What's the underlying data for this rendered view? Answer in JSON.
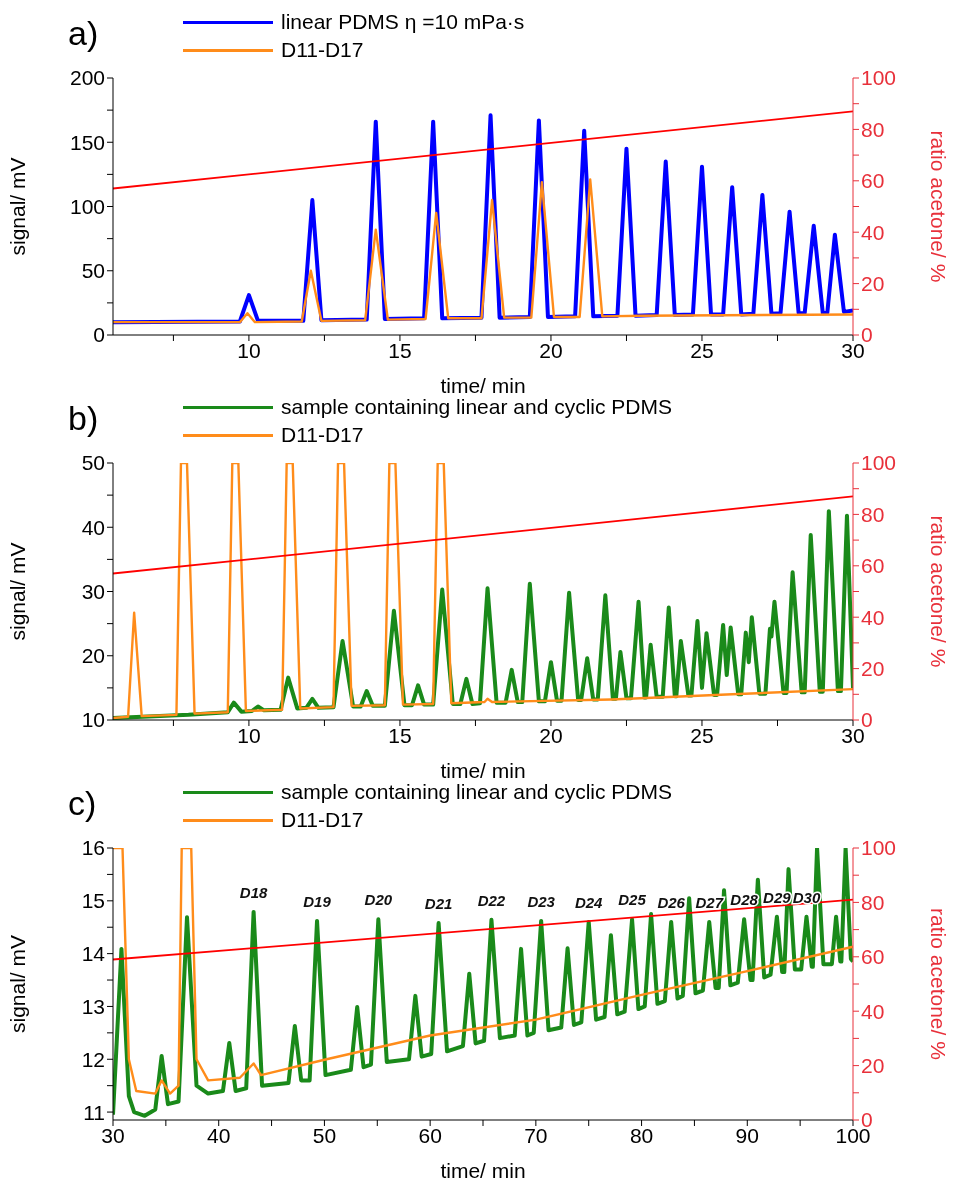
{
  "chart_data": [
    {
      "type": "line",
      "title": "a)",
      "xlabel": "time/ min",
      "ylabel": "signal/ mV",
      "y2label": "ratio acetone/ %",
      "legend": "top left",
      "xlim": [
        5.5,
        30
      ],
      "xticks": [
        {
          "value": 7.5,
          "label": null
        },
        10,
        {
          "value": 12.5,
          "label": null
        },
        15,
        {
          "value": 17.5,
          "label": null
        },
        20,
        {
          "value": 22.5,
          "label": null
        },
        25,
        {
          "value": 27.5,
          "label": null
        },
        30
      ],
      "ylim": [
        0,
        200
      ],
      "yticks": [
        0,
        {
          "value": 25,
          "label": null
        },
        50,
        {
          "value": 75,
          "label": null
        },
        100,
        {
          "value": 125,
          "label": null
        },
        150,
        {
          "value": 175,
          "label": null
        },
        200
      ],
      "y2lim": [
        0,
        100
      ],
      "y2ticks": [
        0,
        {
          "value": 10,
          "label": null
        },
        20,
        {
          "value": 30,
          "label": null
        },
        40,
        {
          "value": 50,
          "label": null
        },
        60,
        {
          "value": 70,
          "label": null
        },
        80,
        {
          "value": 90,
          "label": null
        },
        100
      ],
      "series": [
        {
          "name": "linear PDMS η =10 mPa·s",
          "color": "#0000ff",
          "x": [
            5.5,
            9.7,
            10.0,
            10.3,
            11.8,
            12.1,
            12.4,
            13.9,
            14.2,
            14.5,
            15.8,
            16.1,
            16.4,
            17.7,
            18.0,
            18.3,
            19.3,
            19.6,
            19.9,
            20.8,
            21.1,
            21.4,
            22.2,
            22.5,
            22.8,
            23.5,
            23.8,
            24.1,
            24.7,
            25.0,
            25.3,
            25.7,
            26.0,
            26.3,
            26.7,
            27.0,
            27.3,
            27.6,
            27.9,
            28.2,
            28.4,
            28.7,
            29.0,
            29.15,
            29.4,
            29.7,
            30
          ],
          "values": [
            10,
            10.5,
            31,
            11,
            11,
            105,
            11.5,
            12,
            166,
            12.5,
            13,
            166,
            13,
            13.5,
            171,
            13.5,
            14,
            167,
            14,
            14.5,
            159,
            14.5,
            15,
            145,
            15,
            15.5,
            135,
            15.5,
            16,
            131,
            16,
            16,
            115,
            16,
            16.5,
            109,
            16.5,
            17,
            96,
            17,
            17,
            85,
            17,
            17.5,
            78,
            18,
            19
          ]
        },
        {
          "name": "D11-D17",
          "color": "#ff8c1a",
          "x": [
            5.5,
            9.7,
            9.95,
            10.2,
            11.75,
            12.05,
            12.4,
            13.85,
            14.2,
            14.6,
            15.85,
            16.2,
            16.6,
            17.7,
            18.05,
            18.45,
            19.35,
            19.7,
            20.1,
            20.95,
            21.3,
            21.7,
            23,
            30
          ],
          "values": [
            10,
            10,
            17,
            10,
            10.5,
            50,
            11,
            11.5,
            82,
            12,
            12.5,
            95,
            13,
            13,
            105,
            13.5,
            13.5,
            119,
            14,
            14,
            121,
            14.5,
            15,
            16
          ]
        },
        {
          "color": "#ff0000",
          "axis": "y2",
          "x": [
            5.5,
            30
          ],
          "values": [
            57,
            87
          ]
        }
      ]
    },
    {
      "type": "line",
      "title": "b)",
      "xlabel": "time/ min",
      "ylabel": "signal/ mV",
      "y2label": "ratio acetone/ %",
      "legend": "top left",
      "xlim": [
        5.5,
        30
      ],
      "xticks": [
        {
          "value": 7.5,
          "label": null
        },
        10,
        {
          "value": 12.5,
          "label": null
        },
        15,
        {
          "value": 17.5,
          "label": null
        },
        20,
        {
          "value": 22.5,
          "label": null
        },
        25,
        {
          "value": 27.5,
          "label": null
        },
        30
      ],
      "ylim": [
        10,
        50
      ],
      "yticks": [
        10,
        {
          "value": 15,
          "label": null
        },
        20,
        {
          "value": 25,
          "label": null
        },
        30,
        {
          "value": 35,
          "label": null
        },
        40,
        {
          "value": 45,
          "label": null
        },
        50
      ],
      "y2lim": [
        0,
        100
      ],
      "y2ticks": [
        0,
        {
          "value": 10,
          "label": null
        },
        20,
        {
          "value": 30,
          "label": null
        },
        40,
        {
          "value": 50,
          "label": null
        },
        60,
        {
          "value": 70,
          "label": null
        },
        80,
        {
          "value": 90,
          "label": null
        },
        100
      ],
      "series": [
        {
          "name": "sample containing linear and cyclic PDMS",
          "color": "#1a8a1a",
          "x": [
            5.5,
            8,
            9.3,
            9.5,
            9.75,
            10.1,
            10.3,
            10.5,
            11.05,
            11.3,
            11.6,
            11.9,
            12.1,
            12.3,
            12.8,
            13.1,
            13.45,
            13.7,
            13.9,
            14.1,
            14.5,
            14.8,
            15.15,
            15.4,
            15.6,
            15.8,
            16.1,
            16.4,
            16.75,
            17.0,
            17.2,
            17.4,
            17.65,
            17.9,
            18.2,
            18.5,
            18.7,
            18.9,
            19.05,
            19.3,
            19.6,
            19.8,
            20.0,
            20.2,
            20.35,
            20.6,
            20.9,
            21.0,
            21.2,
            21.4,
            21.55,
            21.8,
            22.05,
            22.15,
            22.3,
            22.5,
            22.65,
            22.9,
            23.1,
            23.15,
            23.3,
            23.5,
            23.7,
            23.9,
            24.1,
            24.15,
            24.3,
            24.55,
            24.65,
            24.85,
            25.0,
            25.15,
            25.4,
            25.5,
            25.7,
            25.82,
            25.95,
            26.2,
            26.3,
            26.45,
            26.55,
            26.65,
            26.9,
            27.1,
            27.25,
            27.3,
            27.4,
            27.7,
            27.8,
            28.0,
            28.3,
            28.4,
            28.6,
            28.9,
            29.0,
            29.2,
            29.5,
            29.6,
            29.8,
            30
          ],
          "values": [
            10.3,
            10.8,
            11.2,
            12.7,
            11.3,
            11.4,
            12.1,
            11.5,
            11.6,
            16.6,
            11.8,
            11.9,
            13.3,
            11.9,
            12,
            22.3,
            12.1,
            12.1,
            14.5,
            12.2,
            12.2,
            27,
            12.3,
            12.3,
            15.4,
            12.4,
            12.4,
            30.3,
            12.5,
            12.5,
            16.4,
            12.5,
            12.6,
            30.5,
            12.7,
            12.7,
            17.8,
            12.8,
            12.8,
            31.2,
            12.9,
            12.9,
            19,
            13,
            13,
            29.8,
            13.1,
            13.1,
            19.6,
            13.2,
            13.2,
            29.4,
            13.3,
            13.3,
            20.6,
            13.4,
            13.4,
            28.4,
            13.5,
            13.5,
            21.7,
            13.6,
            13.6,
            27.5,
            13.7,
            13.7,
            22.3,
            13.8,
            13.8,
            25.4,
            15,
            23.5,
            13.9,
            13.9,
            24.8,
            17,
            24.4,
            14,
            14,
            23.6,
            19,
            26,
            14.1,
            14.1,
            24.2,
            23,
            28.4,
            14.2,
            14.2,
            33,
            14.3,
            14.3,
            38.8,
            14.4,
            14.4,
            42.5,
            14.5,
            14.5,
            41.8,
            15
          ]
        },
        {
          "name": "D11-D17",
          "color": "#ff8c1a",
          "x": [
            5.5,
            6.0,
            6.2,
            6.45,
            7.6,
            7.75,
            7.95,
            8.2,
            9.3,
            9.45,
            9.65,
            9.9,
            11.1,
            11.25,
            11.45,
            11.7,
            12.8,
            12.95,
            13.15,
            13.4,
            14.5,
            14.65,
            14.85,
            15.1,
            16.1,
            16.25,
            16.45,
            16.7,
            17.8,
            17.9,
            18.05,
            22,
            26,
            30
          ],
          "values": [
            10.3,
            10.5,
            26.7,
            10.6,
            10.8,
            50,
            50,
            11,
            11.2,
            50,
            50,
            11.4,
            11.6,
            50,
            50,
            11.8,
            12,
            50,
            50,
            12.2,
            12.3,
            50,
            50,
            12.4,
            12.5,
            50,
            50,
            12.6,
            12.8,
            13.3,
            12.8,
            13.2,
            14,
            14.8
          ]
        },
        {
          "color": "#ff0000",
          "axis": "y2",
          "x": [
            5.5,
            30
          ],
          "values": [
            57,
            87
          ]
        }
      ]
    },
    {
      "type": "line",
      "title": "c)",
      "xlabel": "time/ min",
      "ylabel": "signal/ mV",
      "y2label": "ratio acetone/ %",
      "legend": "top left",
      "xlim": [
        30,
        100
      ],
      "xticks": [
        30,
        {
          "value": 35,
          "label": null
        },
        40,
        {
          "value": 45,
          "label": null
        },
        50,
        {
          "value": 55,
          "label": null
        },
        60,
        {
          "value": 65,
          "label": null
        },
        70,
        {
          "value": 75,
          "label": null
        },
        80,
        {
          "value": 85,
          "label": null
        },
        90,
        {
          "value": 95,
          "label": null
        },
        100
      ],
      "ylim": [
        10.85,
        16
      ],
      "yticks": [
        11,
        {
          "value": 11.5,
          "label": null
        },
        12,
        {
          "value": 12.5,
          "label": null
        },
        13,
        {
          "value": 13.5,
          "label": null
        },
        14,
        {
          "value": 14.5,
          "label": null
        },
        15,
        {
          "value": 15.5,
          "label": null
        },
        16
      ],
      "y2lim": [
        0,
        100
      ],
      "y2ticks": [
        0,
        {
          "value": 10,
          "label": null
        },
        20,
        {
          "value": 30,
          "label": null
        },
        40,
        {
          "value": 50,
          "label": null
        },
        60,
        {
          "value": 70,
          "label": null
        },
        80,
        {
          "value": 90,
          "label": null
        },
        100
      ],
      "annotations": [
        {
          "text": "D18",
          "x": 43.3,
          "y": 14.79
        },
        {
          "text": "D19",
          "x": 49.3,
          "y": 14.62
        },
        {
          "text": "D20",
          "x": 55.1,
          "y": 14.65
        },
        {
          "text": "D21",
          "x": 60.8,
          "y": 14.58
        },
        {
          "text": "D22",
          "x": 65.8,
          "y": 14.64
        },
        {
          "text": "D23",
          "x": 70.5,
          "y": 14.62
        },
        {
          "text": "D24",
          "x": 75.0,
          "y": 14.6
        },
        {
          "text": "D25",
          "x": 79.1,
          "y": 14.65
        },
        {
          "text": "D26",
          "x": 82.8,
          "y": 14.6
        },
        {
          "text": "D27",
          "x": 86.4,
          "y": 14.6
        },
        {
          "text": "D28",
          "x": 89.7,
          "y": 14.65
        },
        {
          "text": "D29",
          "x": 92.8,
          "y": 14.7
        },
        {
          "text": "D30",
          "x": 95.6,
          "y": 14.7
        }
      ],
      "series": [
        {
          "name": "sample containing linear and cyclic PDMS",
          "color": "#1a8a1a",
          "x": [
            30,
            30.8,
            31.5,
            32,
            33,
            34,
            34.6,
            35.2,
            36.2,
            37.0,
            37.9,
            39,
            40.4,
            41,
            41.6,
            42.6,
            43.3,
            44.1,
            46.6,
            47.2,
            47.8,
            48.6,
            49.3,
            50.1,
            52.5,
            53.1,
            53.7,
            54.4,
            55.1,
            55.9,
            58,
            58.6,
            59.2,
            60.1,
            60.8,
            61.6,
            63.1,
            63.7,
            64.3,
            65.1,
            65.8,
            66.6,
            68,
            68.6,
            69.2,
            69.8,
            70.5,
            71.2,
            72.4,
            73.0,
            73.6,
            74.3,
            75.0,
            75.7,
            76.5,
            77.1,
            77.7,
            78.4,
            79.1,
            79.7,
            80.3,
            80.9,
            81.5,
            82.2,
            82.8,
            83.4,
            83.9,
            84.5,
            85.1,
            85.8,
            86.4,
            87.0,
            87.3,
            87.8,
            88.4,
            89.1,
            89.7,
            90.3,
            90.5,
            91.0,
            91.6,
            92.2,
            92.8,
            93.3,
            93.5,
            93.9,
            94.5,
            95.1,
            95.6,
            96.1,
            96.2,
            96.6,
            97.2,
            98.0,
            98.4,
            98.8,
            98.9,
            99.3,
            99.8,
            100
          ],
          "values": [
            10.95,
            14.09,
            11.3,
            11.0,
            10.93,
            11.05,
            12.06,
            11.15,
            11.2,
            14.69,
            11.5,
            11.35,
            11.4,
            12.31,
            11.4,
            11.45,
            14.79,
            11.5,
            11.55,
            12.63,
            11.6,
            11.6,
            14.62,
            11.7,
            11.8,
            12.99,
            11.85,
            11.9,
            14.65,
            11.95,
            12.0,
            13.2,
            12.05,
            12.1,
            14.58,
            12.15,
            12.25,
            13.62,
            12.3,
            12.35,
            14.64,
            12.4,
            12.45,
            14.09,
            12.45,
            12.5,
            14.62,
            12.55,
            12.6,
            14.1,
            12.65,
            12.7,
            14.6,
            12.75,
            12.8,
            14.35,
            12.85,
            12.9,
            14.65,
            12.95,
            13.0,
            14.75,
            13.05,
            13.1,
            14.6,
            13.15,
            13.2,
            15.05,
            13.25,
            13.3,
            14.6,
            13.35,
            13.35,
            15.2,
            13.4,
            13.45,
            14.65,
            13.5,
            13.5,
            15.4,
            13.55,
            13.6,
            14.7,
            13.65,
            13.65,
            15.6,
            13.7,
            13.7,
            14.7,
            13.75,
            13.75,
            16,
            13.8,
            13.8,
            14.7,
            13.85,
            13.85,
            16,
            13.9,
            13.85
          ]
        },
        {
          "name": "D11-D17",
          "color": "#ff8c1a",
          "x": [
            30,
            30.9,
            31.5,
            32.2,
            34,
            34.6,
            35.4,
            36.2,
            36.5,
            37.4,
            37.9,
            39,
            42,
            43.3,
            44,
            50,
            60,
            70,
            80,
            90,
            100
          ],
          "values": [
            16,
            16,
            12.0,
            11.4,
            11.35,
            11.6,
            11.35,
            11.5,
            16,
            16,
            12.0,
            11.6,
            11.65,
            11.92,
            11.7,
            11.99,
            12.45,
            12.75,
            13.22,
            13.67,
            14.13
          ]
        },
        {
          "color": "#ff0000",
          "axis": "y2",
          "x": [
            30,
            100
          ],
          "values": [
            59,
            81
          ]
        }
      ]
    }
  ]
}
